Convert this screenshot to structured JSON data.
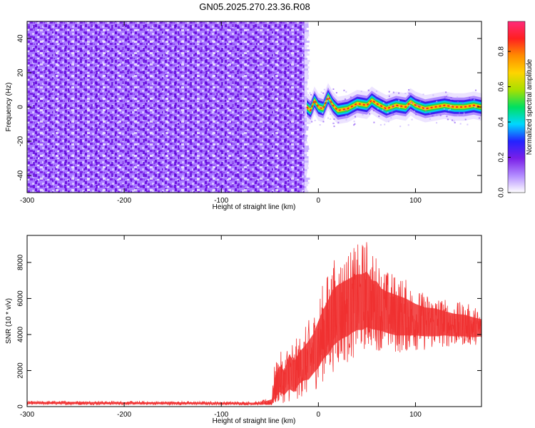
{
  "chart_data": [
    {
      "type": "heatmap",
      "title": "GN05.2025.270.23.36.R08",
      "xlabel": "Height of straight line (km)",
      "ylabel": "Frequency (Hz)",
      "xlim": [
        -300,
        168
      ],
      "ylim": [
        -50,
        50
      ],
      "xticks": [
        -300,
        -200,
        -100,
        0,
        100
      ],
      "yticks": [
        -40,
        -20,
        0,
        20,
        40
      ],
      "noise_region_x": [
        -300,
        -13
      ],
      "signal_region_x": [
        -13,
        168
      ],
      "signal_center_freq": [
        [
          -12,
          0
        ],
        [
          -8,
          -2
        ],
        [
          -4,
          4
        ],
        [
          0,
          0
        ],
        [
          5,
          -1
        ],
        [
          10,
          6
        ],
        [
          15,
          1
        ],
        [
          20,
          -2
        ],
        [
          30,
          -1
        ],
        [
          40,
          2
        ],
        [
          50,
          1
        ],
        [
          55,
          4
        ],
        [
          60,
          2
        ],
        [
          70,
          -1
        ],
        [
          80,
          1
        ],
        [
          90,
          0
        ],
        [
          95,
          3
        ],
        [
          100,
          1
        ],
        [
          110,
          -1
        ],
        [
          120,
          0
        ],
        [
          130,
          1
        ],
        [
          140,
          0
        ],
        [
          150,
          0
        ],
        [
          160,
          1
        ],
        [
          168,
          0
        ]
      ],
      "colorbar": {
        "label": "Normalized spectral amplitude",
        "ticks": [
          0.0,
          0.2,
          0.4,
          0.6,
          0.8
        ],
        "range": [
          0,
          0.97
        ],
        "colors": [
          "#ffffff",
          "#b28bff",
          "#7a1fe8",
          "#2323ff",
          "#00d8ff",
          "#00e060",
          "#a8e000",
          "#ffd400",
          "#ff8c00",
          "#ff2020",
          "#ff2a7a"
        ]
      }
    },
    {
      "type": "line",
      "title": "",
      "xlabel": "Height of straight line (km)",
      "ylabel": "SNR (10 * v/v)",
      "xlim": [
        -300,
        168
      ],
      "ylim": [
        0,
        9500
      ],
      "xticks": [
        -300,
        -200,
        -100,
        0,
        100
      ],
      "yticks": [
        0,
        2000,
        4000,
        6000,
        8000
      ],
      "color": "#f03030",
      "series": [
        {
          "name": "SNR",
          "x": [
            -300,
            -250,
            -200,
            -150,
            -100,
            -60,
            -48,
            -45,
            -40,
            -35,
            -30,
            -25,
            -20,
            -15,
            -10,
            -5,
            0,
            5,
            10,
            15,
            20,
            25,
            30,
            35,
            40,
            45,
            50,
            55,
            60,
            65,
            70,
            80,
            90,
            100,
            110,
            120,
            130,
            140,
            150,
            160,
            168
          ],
          "y": [
            200,
            200,
            180,
            180,
            170,
            160,
            200,
            800,
            1400,
            1100,
            1700,
            1300,
            2100,
            2300,
            2500,
            2800,
            3300,
            3900,
            4200,
            4800,
            5100,
            5300,
            5400,
            5600,
            5700,
            5500,
            5600,
            5400,
            5400,
            5300,
            5200,
            5000,
            4900,
            4800,
            4700,
            4600,
            4600,
            4500,
            4400,
            4300,
            4300
          ],
          "upper": [
            300,
            320,
            300,
            300,
            290,
            280,
            600,
            2400,
            3100,
            2900,
            4100,
            3700,
            3900,
            4300,
            4800,
            5300,
            6200,
            6900,
            7600,
            8200,
            8400,
            8500,
            8700,
            8800,
            9000,
            9200,
            9400,
            8600,
            8500,
            7800,
            7600,
            7400,
            7100,
            6600,
            6300,
            6300,
            6000,
            5800,
            5800,
            5600,
            5400
          ],
          "lower": [
            100,
            90,
            100,
            90,
            90,
            80,
            50,
            100,
            200,
            200,
            250,
            300,
            400,
            600,
            500,
            900,
            1000,
            1400,
            1600,
            1900,
            2100,
            2300,
            2400,
            2600,
            2800,
            3000,
            3200,
            3200,
            3100,
            3100,
            3000,
            2900,
            3000,
            3100,
            3100,
            3200,
            3300,
            3300,
            3400,
            3400,
            3500
          ]
        }
      ]
    }
  ]
}
